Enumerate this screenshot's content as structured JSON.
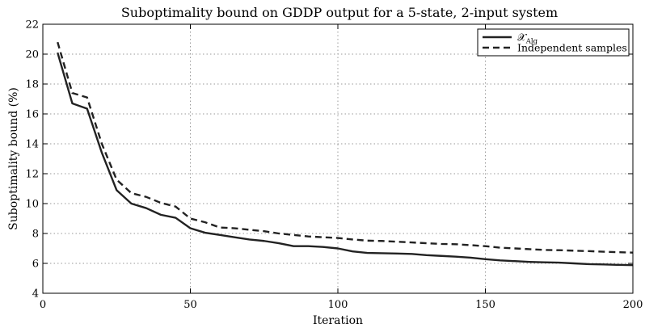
{
  "chart_data": {
    "type": "line",
    "title": "Suboptimality bound on GDDP output for a 5-state, 2-input system",
    "xlabel": "Iteration",
    "ylabel": "Suboptimality bound (%)",
    "xlim": [
      0,
      200
    ],
    "ylim": [
      4,
      22
    ],
    "xticks": [
      0,
      50,
      100,
      150,
      200
    ],
    "yticks": [
      4,
      6,
      8,
      10,
      12,
      14,
      16,
      18,
      20,
      22
    ],
    "grid": true,
    "legend_position": "top-right",
    "series": [
      {
        "name": "𝒳Alg",
        "name_main": "𝒳",
        "name_sub": "Alg",
        "style": "solid",
        "color": "#222222",
        "points": [
          [
            5,
            20.1
          ],
          [
            10,
            16.7
          ],
          [
            15,
            16.35
          ],
          [
            20,
            13.4
          ],
          [
            25,
            10.9
          ],
          [
            30,
            10.0
          ],
          [
            35,
            9.7
          ],
          [
            40,
            9.25
          ],
          [
            45,
            9.05
          ],
          [
            50,
            8.35
          ],
          [
            55,
            8.05
          ],
          [
            60,
            7.9
          ],
          [
            65,
            7.75
          ],
          [
            70,
            7.6
          ],
          [
            75,
            7.5
          ],
          [
            80,
            7.35
          ],
          [
            85,
            7.15
          ],
          [
            90,
            7.15
          ],
          [
            95,
            7.1
          ],
          [
            100,
            7.0
          ],
          [
            105,
            6.8
          ],
          [
            110,
            6.7
          ],
          [
            115,
            6.68
          ],
          [
            120,
            6.66
          ],
          [
            125,
            6.63
          ],
          [
            130,
            6.55
          ],
          [
            135,
            6.5
          ],
          [
            140,
            6.45
          ],
          [
            145,
            6.38
          ],
          [
            150,
            6.28
          ],
          [
            155,
            6.2
          ],
          [
            160,
            6.15
          ],
          [
            165,
            6.1
          ],
          [
            170,
            6.07
          ],
          [
            175,
            6.05
          ],
          [
            180,
            6.0
          ],
          [
            185,
            5.95
          ],
          [
            190,
            5.93
          ],
          [
            195,
            5.9
          ],
          [
            200,
            5.88
          ]
        ]
      },
      {
        "name": "Independent samples",
        "style": "dashed",
        "color": "#222222",
        "points": [
          [
            5,
            20.8
          ],
          [
            10,
            17.4
          ],
          [
            15,
            17.1
          ],
          [
            20,
            14.0
          ],
          [
            25,
            11.6
          ],
          [
            30,
            10.7
          ],
          [
            35,
            10.45
          ],
          [
            40,
            10.05
          ],
          [
            45,
            9.8
          ],
          [
            50,
            9.0
          ],
          [
            55,
            8.75
          ],
          [
            60,
            8.4
          ],
          [
            65,
            8.35
          ],
          [
            70,
            8.25
          ],
          [
            75,
            8.15
          ],
          [
            80,
            8.0
          ],
          [
            85,
            7.9
          ],
          [
            90,
            7.8
          ],
          [
            95,
            7.75
          ],
          [
            100,
            7.7
          ],
          [
            105,
            7.6
          ],
          [
            110,
            7.52
          ],
          [
            115,
            7.5
          ],
          [
            120,
            7.45
          ],
          [
            125,
            7.4
          ],
          [
            130,
            7.35
          ],
          [
            135,
            7.3
          ],
          [
            140,
            7.28
          ],
          [
            145,
            7.22
          ],
          [
            150,
            7.15
          ],
          [
            155,
            7.05
          ],
          [
            160,
            7.0
          ],
          [
            165,
            6.95
          ],
          [
            170,
            6.9
          ],
          [
            175,
            6.88
          ],
          [
            180,
            6.85
          ],
          [
            185,
            6.82
          ],
          [
            190,
            6.78
          ],
          [
            195,
            6.75
          ],
          [
            200,
            6.72
          ]
        ]
      }
    ]
  }
}
